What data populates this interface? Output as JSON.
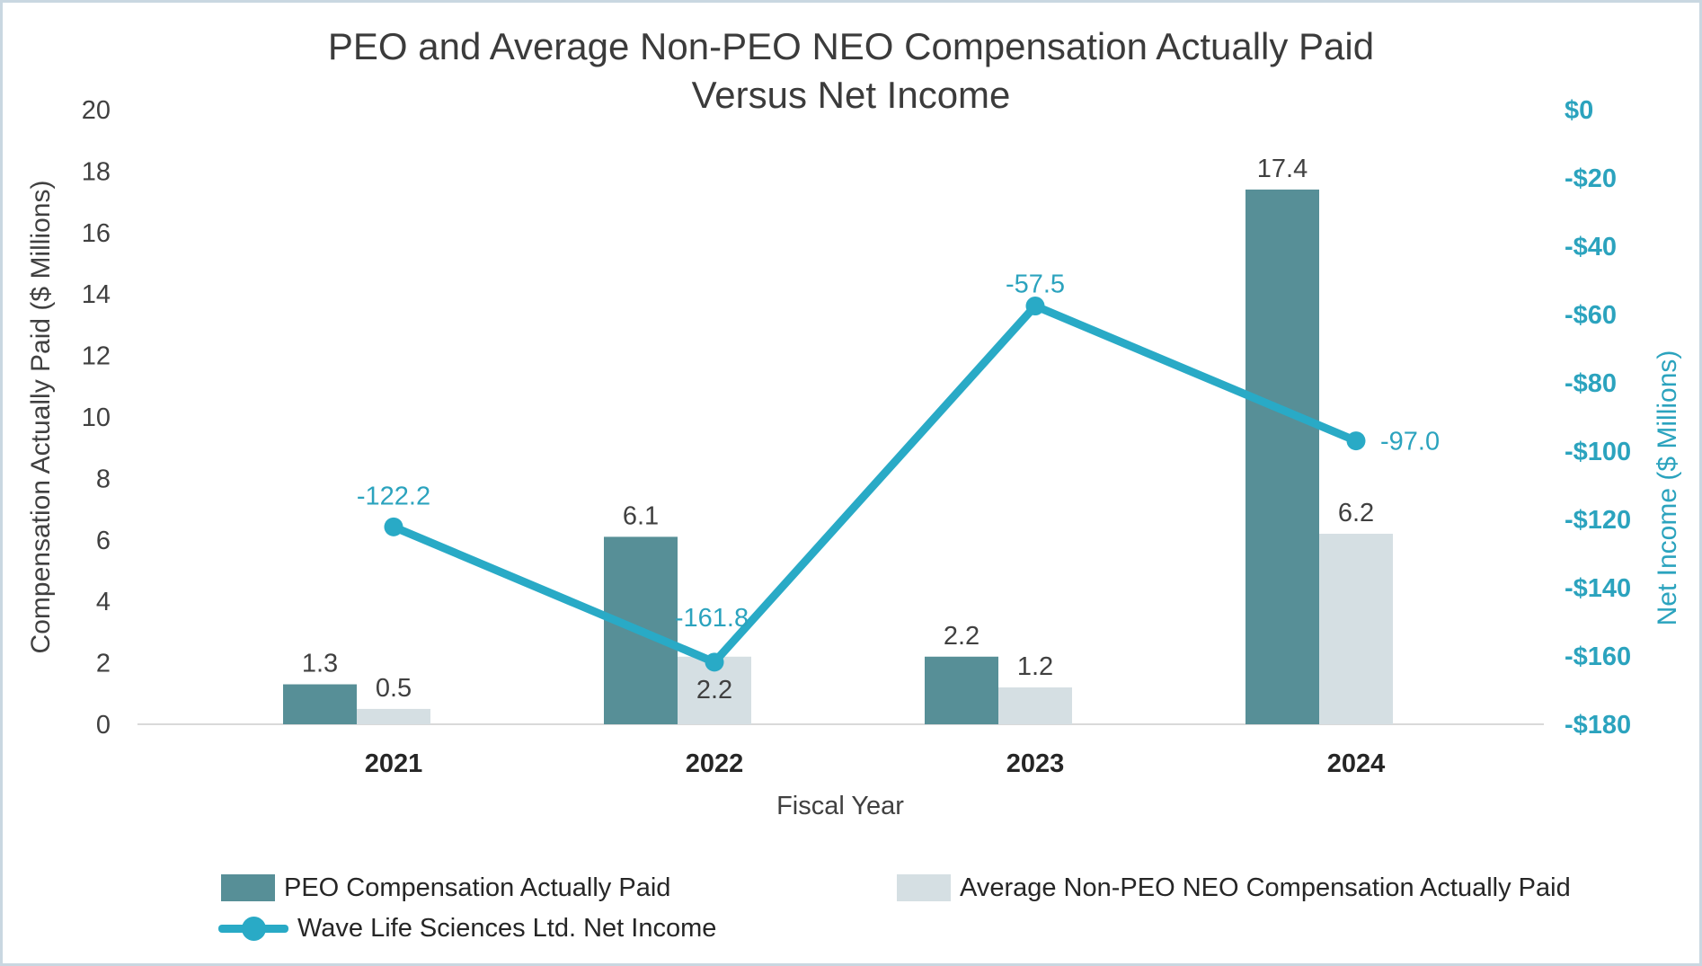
{
  "colors": {
    "peo_bar": "#578f97",
    "non_peo_bar": "#d5dfe3",
    "net_income_line": "#29aac6",
    "teal_text": "#2ba3be",
    "label_text": "#404040",
    "year_text": "#262626",
    "title_text": "#3b3b3b",
    "baseline": "#d9d9d9",
    "frame_border": "#c9d7e1"
  },
  "chart_data": {
    "type": "combo-bar-line",
    "title": "PEO and Average Non-PEO NEO Compensation Actually Paid",
    "subtitle": "Versus Net Income",
    "categories": [
      "2021",
      "2022",
      "2023",
      "2024"
    ],
    "xlabel": "Fiscal Year",
    "series": [
      {
        "name": "PEO Compensation Actually Paid",
        "type": "bar",
        "axis": "left",
        "values": [
          1.3,
          6.1,
          2.2,
          17.4
        ],
        "labels": [
          "1.3",
          "6.1",
          "2.2",
          "17.4"
        ]
      },
      {
        "name": "Average Non-PEO NEO Compensation Actually Paid",
        "type": "bar",
        "axis": "left",
        "values": [
          0.5,
          2.2,
          1.2,
          6.2
        ],
        "labels": [
          "0.5",
          "2.2",
          "1.2",
          "6.2"
        ]
      },
      {
        "name": "Wave Life Sciences Ltd. Net Income",
        "type": "line",
        "axis": "right",
        "values": [
          -122.2,
          -161.8,
          -57.5,
          -97.0
        ],
        "labels": [
          "-122.2",
          "-161.8",
          "-57.5",
          "-97.0"
        ]
      }
    ],
    "left_axis": {
      "label": "Compensation Actually Paid ($ Millions)",
      "min": 0,
      "max": 20,
      "step": 2,
      "ticks": [
        "20",
        "18",
        "16",
        "14",
        "12",
        "10",
        "8",
        "6",
        "4",
        "2",
        "0"
      ]
    },
    "right_axis": {
      "label": "Net Income ($ Millions)",
      "min": -180,
      "max": 0,
      "step": -20,
      "ticks": [
        "$0",
        "-$20",
        "-$40",
        "-$60",
        "-$80",
        "-$100",
        "-$120",
        "-$140",
        "-$160",
        "-$180"
      ]
    },
    "grid": "zero-baseline-only",
    "legend_position": "bottom-left"
  }
}
